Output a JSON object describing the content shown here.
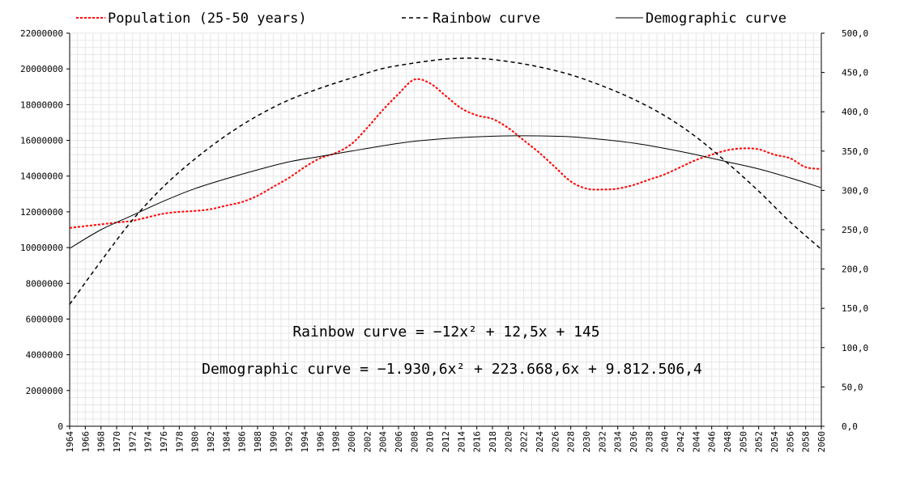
{
  "chart_data": {
    "type": "line",
    "legend": [
      {
        "label": "Population (25-50 years)",
        "color": "#ff0000",
        "style": "dotted"
      },
      {
        "label": "Rainbow curve",
        "color": "#000000",
        "style": "dashed"
      },
      {
        "label": "Demographic curve",
        "color": "#000000",
        "style": "solid"
      }
    ],
    "legend_position": "top",
    "grid": true,
    "x_range": [
      1964,
      2060
    ],
    "x_tick_step": 2,
    "y_left": {
      "range": [
        0,
        22000000
      ],
      "ticks": [
        "0",
        "2000000",
        "4000000",
        "6000000",
        "8000000",
        "10000000",
        "12000000",
        "14000000",
        "16000000",
        "18000000",
        "20000000",
        "22000000"
      ]
    },
    "y_right": {
      "range": [
        0,
        500
      ],
      "ticks": [
        "0,0",
        "50,0",
        "100,0",
        "150,0",
        "200,0",
        "250,0",
        "300,0",
        "350,0",
        "400,0",
        "450,0",
        "500,0"
      ]
    },
    "series": [
      {
        "name": "Population (25-50 years)",
        "axis": "left",
        "x": [
          1964,
          1966,
          1968,
          1970,
          1972,
          1974,
          1976,
          1978,
          1980,
          1982,
          1984,
          1986,
          1988,
          1990,
          1992,
          1994,
          1996,
          1998,
          2000,
          2002,
          2004,
          2006,
          2008,
          2010,
          2012,
          2014,
          2016,
          2018,
          2020,
          2022,
          2024,
          2026,
          2028,
          2030,
          2032,
          2034,
          2036,
          2038,
          2040,
          2042,
          2044,
          2046,
          2048,
          2050,
          2052,
          2054,
          2056,
          2058,
          2060
        ],
        "values": [
          11100000,
          11200000,
          11300000,
          11400000,
          11500000,
          11700000,
          11900000,
          12000000,
          12050000,
          12150000,
          12350000,
          12550000,
          12900000,
          13400000,
          13900000,
          14500000,
          15000000,
          15300000,
          15800000,
          16700000,
          17700000,
          18600000,
          19400000,
          19200000,
          18500000,
          17800000,
          17400000,
          17200000,
          16700000,
          16000000,
          15300000,
          14500000,
          13700000,
          13300000,
          13250000,
          13300000,
          13500000,
          13800000,
          14100000,
          14500000,
          14900000,
          15200000,
          15450000,
          15550000,
          15500000,
          15200000,
          15000000,
          14500000,
          14400000
        ]
      },
      {
        "name": "Rainbow curve",
        "axis": "right",
        "x": [
          1964,
          1968,
          1972,
          1976,
          1980,
          1984,
          1988,
          1992,
          1996,
          2000,
          2004,
          2008,
          2012,
          2016,
          2020,
          2024,
          2028,
          2032,
          2036,
          2040,
          2044,
          2048,
          2052,
          2056,
          2060
        ],
        "values": [
          155,
          210,
          262,
          305,
          340,
          370,
          395,
          415,
          430,
          443,
          455,
          462,
          467,
          468,
          464,
          457,
          447,
          433,
          416,
          395,
          368,
          335,
          299,
          260,
          225
        ]
      },
      {
        "name": "Demographic curve",
        "axis": "left",
        "x": [
          1964,
          1968,
          1972,
          1976,
          1980,
          1984,
          1988,
          1992,
          1996,
          2000,
          2004,
          2008,
          2012,
          2016,
          2020,
          2024,
          2028,
          2032,
          2036,
          2040,
          2044,
          2048,
          2052,
          2056,
          2060
        ],
        "values": [
          9950000,
          11000000,
          11800000,
          12600000,
          13300000,
          13850000,
          14350000,
          14800000,
          15100000,
          15400000,
          15700000,
          15950000,
          16100000,
          16200000,
          16250000,
          16250000,
          16200000,
          16050000,
          15850000,
          15550000,
          15200000,
          14800000,
          14400000,
          13900000,
          13350000
        ]
      }
    ],
    "annotations": [
      "Rainbow curve = −12x² + 12,5x + 145",
      "Demographic curve = −1.930,6x² + 223.668,6x + 9.812.506,4"
    ]
  }
}
